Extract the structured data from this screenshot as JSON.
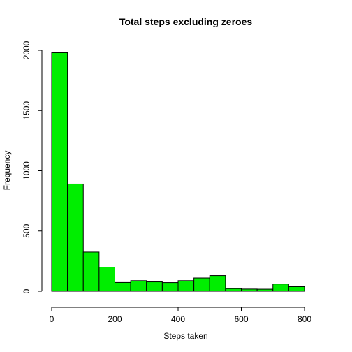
{
  "chart_data": {
    "type": "bar",
    "title": "Total steps excluding zeroes",
    "xlabel": "Steps taken",
    "ylabel": "Frequency",
    "bar_color": "#00ee00",
    "bin_width": 50,
    "bin_edges": [
      0,
      50,
      100,
      150,
      200,
      250,
      300,
      350,
      400,
      450,
      500,
      550,
      600,
      650,
      700,
      750,
      800
    ],
    "values": [
      1980,
      890,
      325,
      200,
      73,
      88,
      78,
      72,
      88,
      110,
      130,
      22,
      18,
      17,
      60,
      38
    ],
    "xticks": [
      0,
      200,
      400,
      600,
      800
    ],
    "yticks": [
      0,
      500,
      1000,
      1500,
      2000
    ],
    "xlim": [
      -32,
      832
    ],
    "ylim": [
      0,
      2000
    ]
  }
}
